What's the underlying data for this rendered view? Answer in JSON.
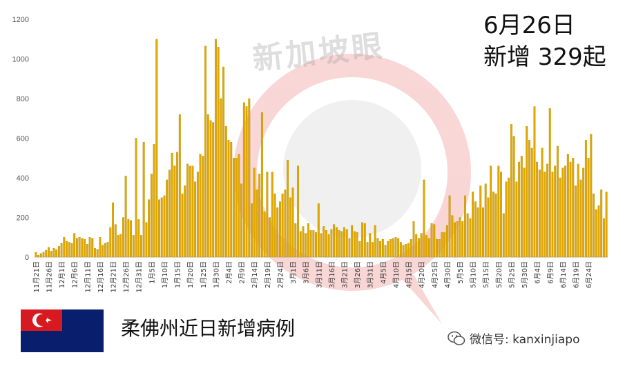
{
  "headline": {
    "date": "6月26日",
    "count_text": "新增 329起"
  },
  "watermark": "新加坡眼",
  "caption": "柔佛州近日新增病例",
  "wechat_id": "微信号: kanxinjiapo",
  "colors": {
    "bar": "#E0A800",
    "bar_edge": "#B08000",
    "watermark_red": "#F4B6B6"
  },
  "chart_data": {
    "type": "bar",
    "title": "",
    "xlabel": "",
    "ylabel": "",
    "ylim": [
      0,
      1200
    ],
    "yticks": [
      0,
      200,
      400,
      600,
      800,
      1000,
      1200
    ],
    "grid": false,
    "start_date": "11月21日",
    "tick_labels": [
      "11月21日",
      "11月26日",
      "12月1日",
      "12月6日",
      "12月11日",
      "12月16日",
      "12月21日",
      "12月26日",
      "12月31日",
      "1月5日",
      "1月10日",
      "1月15日",
      "1月20日",
      "1月25日",
      "1月30日",
      "2月4日",
      "2月9日",
      "2月14日",
      "2月19日",
      "2月24日",
      "3月1日",
      "3月6日",
      "3月11日",
      "3月16日",
      "3月21日",
      "3月26日",
      "3月31日",
      "4月5日",
      "4月10日",
      "4月15日",
      "4月20日",
      "4月25日",
      "4月30日",
      "5月5日",
      "5月10日",
      "5月15日",
      "5月20日",
      "5月25日",
      "5月30日",
      "6月4日",
      "6月9日",
      "6月14日",
      "6月19日",
      "6月24日"
    ],
    "values": [
      25,
      10,
      18,
      25,
      35,
      50,
      30,
      45,
      38,
      55,
      70,
      100,
      80,
      75,
      70,
      120,
      95,
      100,
      95,
      90,
      65,
      100,
      95,
      45,
      40,
      100,
      60,
      70,
      75,
      150,
      275,
      165,
      110,
      115,
      200,
      410,
      190,
      185,
      110,
      600,
      190,
      110,
      580,
      175,
      290,
      420,
      570,
      1100,
      290,
      300,
      310,
      390,
      440,
      525,
      460,
      530,
      720,
      320,
      360,
      470,
      460,
      460,
      380,
      430,
      520,
      510,
      1065,
      720,
      690,
      680,
      1100,
      1060,
      800,
      960,
      660,
      590,
      580,
      500,
      500,
      520,
      370,
      780,
      760,
      800,
      270,
      450,
      340,
      420,
      730,
      230,
      430,
      200,
      430,
      320,
      250,
      280,
      320,
      340,
      490,
      300,
      350,
      170,
      460,
      130,
      155,
      120,
      170,
      135,
      135,
      125,
      270,
      120,
      155,
      135,
      115,
      140,
      165,
      150,
      135,
      130,
      150,
      140,
      95,
      160,
      130,
      125,
      80,
      175,
      170,
      75,
      120,
      75,
      160,
      95,
      80,
      90,
      60,
      80,
      90,
      95,
      100,
      95,
      75,
      60,
      65,
      70,
      90,
      180,
      115,
      95,
      120,
      390,
      110,
      95,
      170,
      165,
      90,
      90,
      125,
      125,
      160,
      310,
      210,
      175,
      180,
      200,
      180,
      310,
      220,
      195,
      330,
      280,
      250,
      360,
      250,
      370,
      300,
      460,
      330,
      320,
      460,
      430,
      220,
      380,
      400,
      670,
      610,
      380,
      480,
      510,
      450,
      660,
      590,
      550,
      760,
      480,
      440,
      550,
      430,
      470,
      750,
      430,
      460,
      560,
      400,
      450,
      460,
      520,
      480,
      500,
      360,
      470,
      390,
      450,
      590,
      500,
      620,
      320,
      240,
      260,
      340,
      195,
      329
    ]
  }
}
